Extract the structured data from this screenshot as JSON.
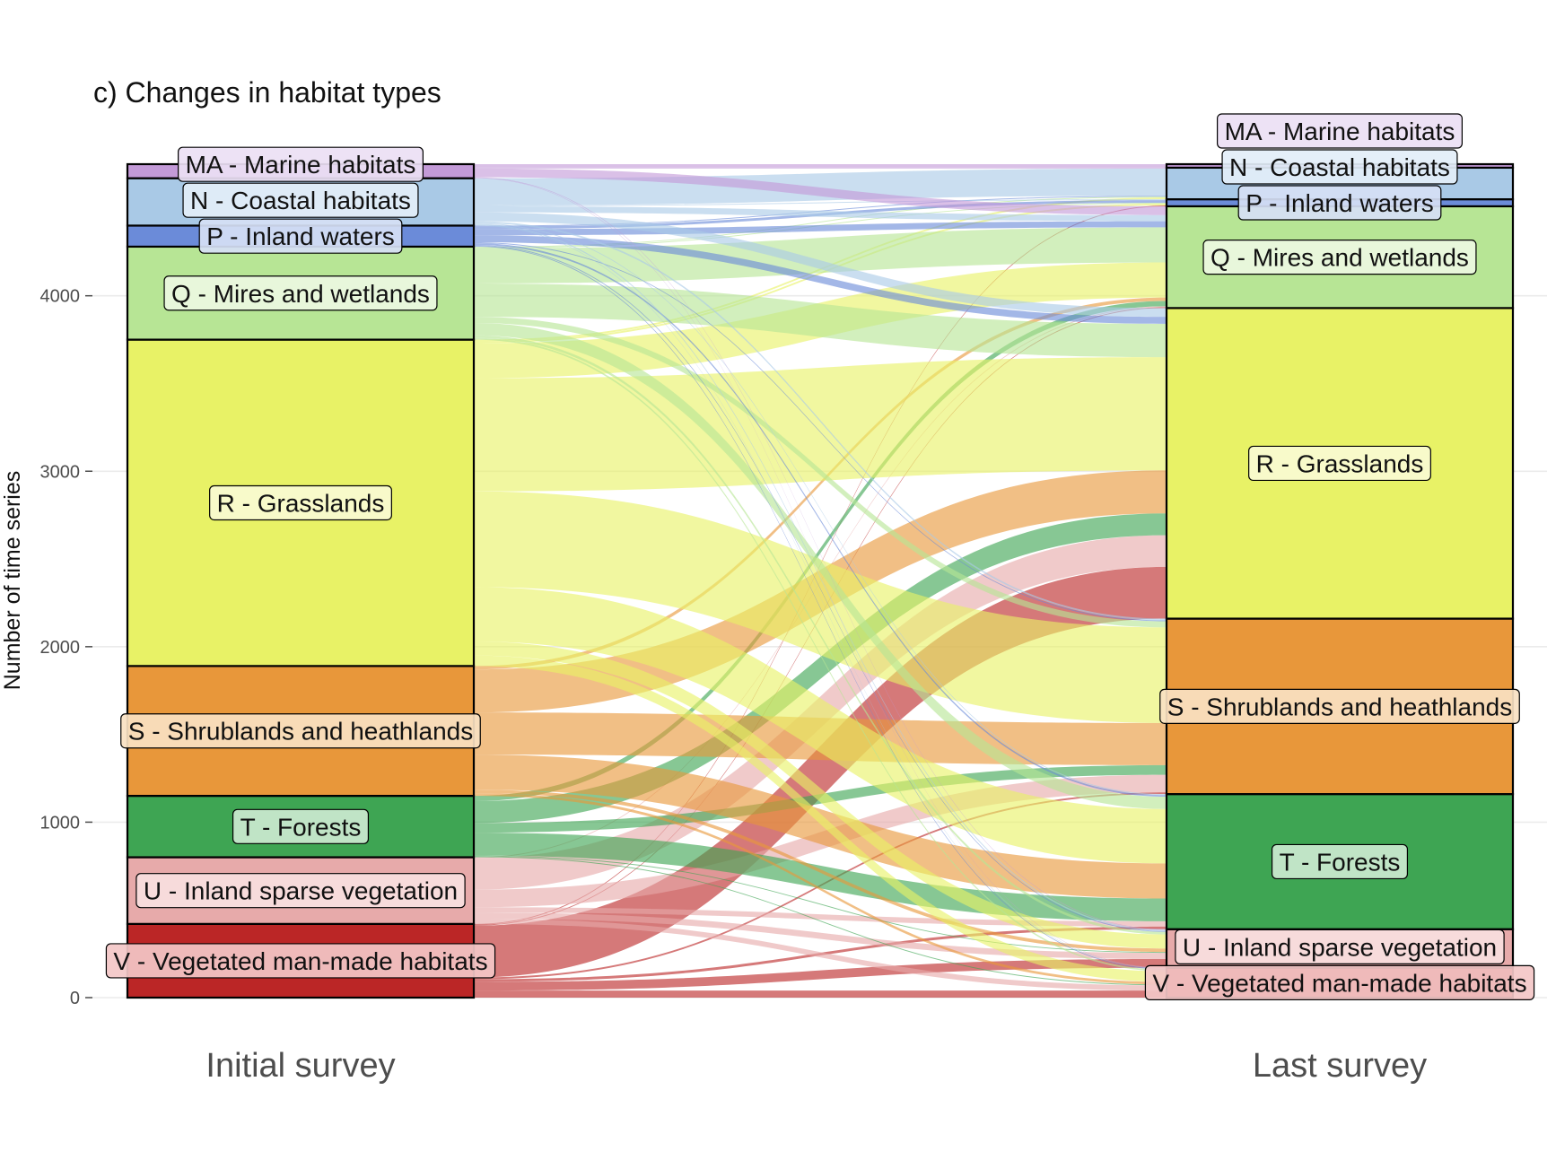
{
  "chart_data": {
    "type": "alluvial",
    "title": "c) Changes in habitat types",
    "ylabel": "Number of time series",
    "xlabel": "",
    "ylim": [
      0,
      4750
    ],
    "yticks": [
      0,
      1000,
      2000,
      3000,
      4000
    ],
    "axes": [
      "Initial survey",
      "Last survey"
    ],
    "grid": true,
    "categories": [
      {
        "code": "V",
        "label": "V - Vegetated man-made habitats",
        "color": "#bb2626",
        "label_bg": "#f3c7c7"
      },
      {
        "code": "U",
        "label": "U - Inland sparse vegetation",
        "color": "#e7aaaa",
        "label_bg": "#f8e0e0"
      },
      {
        "code": "T",
        "label": "T - Forests",
        "color": "#3ea553",
        "label_bg": "#cbe9d0"
      },
      {
        "code": "S",
        "label": "S - Shrublands and heathlands",
        "color": "#e8973a",
        "label_bg": "#f9e1c2"
      },
      {
        "code": "R",
        "label": "R - Grasslands",
        "color": "#e8f266",
        "label_bg": "#f9fbd2"
      },
      {
        "code": "Q",
        "label": "Q - Mires and wetlands",
        "color": "#b7e595",
        "label_bg": "#ebf8e1"
      },
      {
        "code": "P",
        "label": "P - Inland waters",
        "color": "#6b8bd9",
        "label_bg": "#d6dff5"
      },
      {
        "code": "N",
        "label": "N - Coastal habitats",
        "color": "#a9c9e6",
        "label_bg": "#e3eef8"
      },
      {
        "code": "MA",
        "label": "MA - Marine habitats",
        "color": "#c39ad8",
        "label_bg": "#ecdff4"
      }
    ],
    "initial_totals": {
      "V": 420,
      "U": 380,
      "T": 350,
      "S": 740,
      "R": 1860,
      "Q": 530,
      "P": 120,
      "N": 270,
      "MA": 80
    },
    "last_totals": {
      "V": 170,
      "U": 220,
      "T": 770,
      "S": 1000,
      "R": 1770,
      "Q": 580,
      "P": 40,
      "N": 180,
      "MA": 20
    },
    "flows": [
      {
        "from": "V",
        "to": "V",
        "value": 40
      },
      {
        "from": "V",
        "to": "U",
        "value": 50
      },
      {
        "from": "V",
        "to": "T",
        "value": 15
      },
      {
        "from": "V",
        "to": "S",
        "value": 10
      },
      {
        "from": "V",
        "to": "R",
        "value": 295
      },
      {
        "from": "V",
        "to": "Q",
        "value": 5
      },
      {
        "from": "V",
        "to": "P",
        "value": 5
      },
      {
        "from": "U",
        "to": "V",
        "value": 30
      },
      {
        "from": "U",
        "to": "U",
        "value": 35
      },
      {
        "from": "U",
        "to": "T",
        "value": 30
      },
      {
        "from": "U",
        "to": "S",
        "value": 100
      },
      {
        "from": "U",
        "to": "R",
        "value": 180
      },
      {
        "from": "U",
        "to": "Q",
        "value": 5
      },
      {
        "from": "T",
        "to": "V",
        "value": 5
      },
      {
        "from": "T",
        "to": "U",
        "value": 5
      },
      {
        "from": "T",
        "to": "T",
        "value": 130
      },
      {
        "from": "T",
        "to": "S",
        "value": 55
      },
      {
        "from": "T",
        "to": "R",
        "value": 125
      },
      {
        "from": "T",
        "to": "Q",
        "value": 30
      },
      {
        "from": "S",
        "to": "V",
        "value": 15
      },
      {
        "from": "S",
        "to": "U",
        "value": 20
      },
      {
        "from": "S",
        "to": "T",
        "value": 200
      },
      {
        "from": "S",
        "to": "S",
        "value": 240
      },
      {
        "from": "S",
        "to": "R",
        "value": 245
      },
      {
        "from": "S",
        "to": "Q",
        "value": 20
      },
      {
        "from": "R",
        "to": "V",
        "value": 60
      },
      {
        "from": "R",
        "to": "U",
        "value": 80
      },
      {
        "from": "R",
        "to": "T",
        "value": 310
      },
      {
        "from": "R",
        "to": "S",
        "value": 545
      },
      {
        "from": "R",
        "to": "R",
        "value": 645
      },
      {
        "from": "R",
        "to": "Q",
        "value": 200
      },
      {
        "from": "R",
        "to": "P",
        "value": 10
      },
      {
        "from": "R",
        "to": "N",
        "value": 10
      },
      {
        "from": "Q",
        "to": "V",
        "value": 10
      },
      {
        "from": "Q",
        "to": "U",
        "value": 15
      },
      {
        "from": "Q",
        "to": "T",
        "value": 70
      },
      {
        "from": "Q",
        "to": "S",
        "value": 35
      },
      {
        "from": "Q",
        "to": "R",
        "value": 190
      },
      {
        "from": "Q",
        "to": "Q",
        "value": 200
      },
      {
        "from": "Q",
        "to": "P",
        "value": 5
      },
      {
        "from": "Q",
        "to": "N",
        "value": 5
      },
      {
        "from": "P",
        "to": "V",
        "value": 5
      },
      {
        "from": "P",
        "to": "U",
        "value": 5
      },
      {
        "from": "P",
        "to": "T",
        "value": 10
      },
      {
        "from": "P",
        "to": "S",
        "value": 5
      },
      {
        "from": "P",
        "to": "R",
        "value": 40
      },
      {
        "from": "P",
        "to": "Q",
        "value": 35
      },
      {
        "from": "P",
        "to": "P",
        "value": 15
      },
      {
        "from": "P",
        "to": "N",
        "value": 5
      },
      {
        "from": "N",
        "to": "V",
        "value": 3
      },
      {
        "from": "N",
        "to": "U",
        "value": 7
      },
      {
        "from": "N",
        "to": "T",
        "value": 5
      },
      {
        "from": "N",
        "to": "S",
        "value": 10
      },
      {
        "from": "N",
        "to": "R",
        "value": 50
      },
      {
        "from": "N",
        "to": "Q",
        "value": 35
      },
      {
        "from": "N",
        "to": "P",
        "value": 5
      },
      {
        "from": "N",
        "to": "N",
        "value": 155
      },
      {
        "from": "MA",
        "to": "V",
        "value": 2
      },
      {
        "from": "MA",
        "to": "U",
        "value": 3
      },
      {
        "from": "MA",
        "to": "R",
        "value": 0
      },
      {
        "from": "MA",
        "to": "Q",
        "value": 50
      },
      {
        "from": "MA",
        "to": "N",
        "value": 5
      },
      {
        "from": "MA",
        "to": "MA",
        "value": 20
      }
    ]
  }
}
